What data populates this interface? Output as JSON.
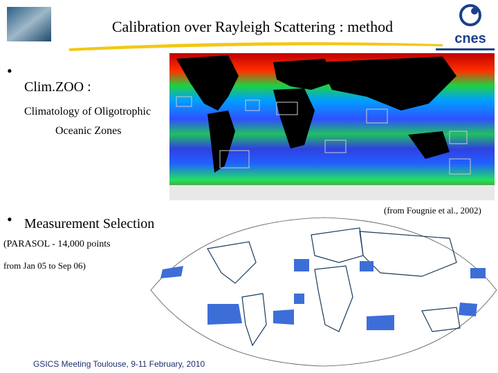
{
  "header": {
    "title": "Calibration over Rayleigh Scattering : method",
    "logo": "cnes"
  },
  "bullets": [
    {
      "label": "Clim.ZOO :",
      "lines": [
        "Climatology of Oligotrophic",
        "Oceanic Zones"
      ]
    },
    {
      "label": "Measurement Selection",
      "lines": [
        "(PARASOL - 14,000 points",
        "from Jan 05 to Sep 06)"
      ]
    }
  ],
  "citation": "(from Fougnie et al., 2002)",
  "footer": "GSICS Meeting Toulouse, 9-11 February, 2010"
}
